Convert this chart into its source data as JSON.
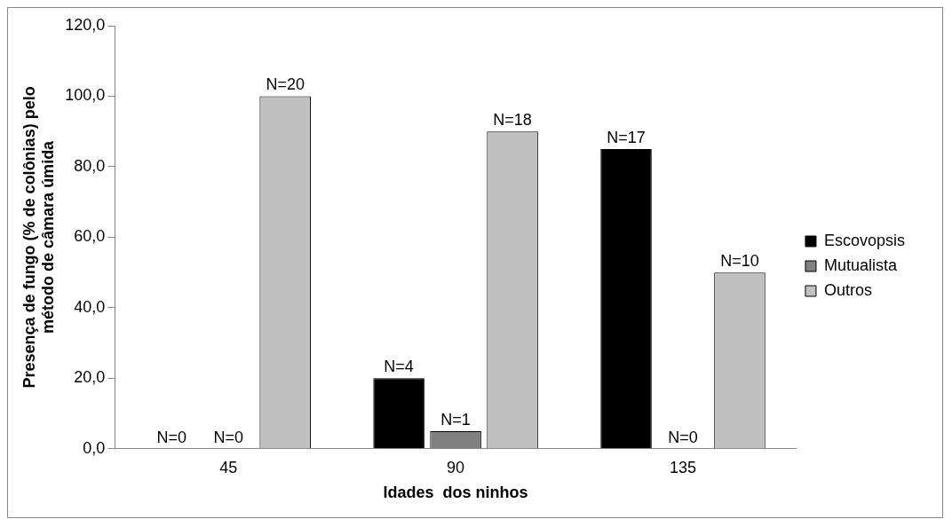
{
  "chart_data": {
    "type": "bar",
    "xlabel": "Idades  dos ninhos",
    "ylabel": "Presença de fungo (% de colônias) pelo método de câmara úmida",
    "categories": [
      "45",
      "90",
      "135"
    ],
    "series": [
      {
        "name": "Escovopsis",
        "color": "#000000",
        "values": [
          0,
          20,
          85
        ]
      },
      {
        "name": "Mutualista",
        "color": "#808080",
        "values": [
          0,
          5,
          0
        ]
      },
      {
        "name": "Outros",
        "color": "#c0c0c0",
        "values": [
          100,
          90,
          50
        ]
      }
    ],
    "annotations": [
      "N=0",
      "N=4",
      "N=17",
      "N=0",
      "N=1",
      "N=0",
      "N=20",
      "N=18",
      "N=10"
    ],
    "ylim": [
      0,
      120
    ],
    "yticks": [
      {
        "value": 0,
        "label": "0,0"
      },
      {
        "value": 20,
        "label": "20,0"
      },
      {
        "value": 40,
        "label": "40,0"
      },
      {
        "value": 60,
        "label": "60,0"
      },
      {
        "value": 80,
        "label": "80,0"
      },
      {
        "value": 100,
        "label": "100,0"
      },
      {
        "value": 120,
        "label": "120,0"
      }
    ],
    "grid": false,
    "legend": "right"
  }
}
